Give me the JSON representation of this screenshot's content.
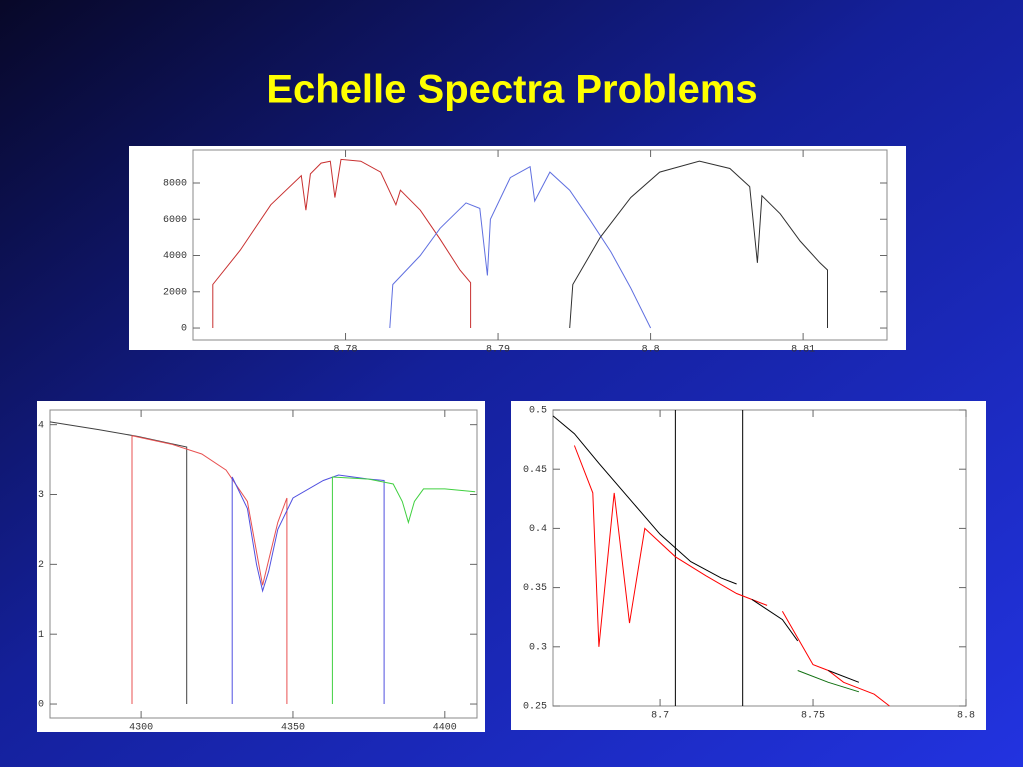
{
  "title": "Echelle Spectra Problems",
  "chart_data": [
    {
      "type": "line",
      "xlim": [
        8.77,
        8.8155
      ],
      "ylim": [
        -660,
        9820
      ],
      "xticks": [
        8.78,
        8.79,
        8.8,
        8.81
      ],
      "yticks": [
        0,
        2000,
        4000,
        6000,
        8000
      ],
      "series": [
        {
          "color": "#c83030",
          "x": [
            8.7713,
            8.7713,
            8.7731,
            8.7751,
            8.7771,
            8.7774,
            8.7777,
            8.7784,
            8.779,
            8.7793,
            8.7797,
            8.781,
            8.7823,
            8.7833,
            8.7836,
            8.7849,
            8.7862,
            8.7875,
            8.7882,
            8.7882
          ],
          "values": [
            0,
            2400,
            4300,
            6800,
            8400,
            6500,
            8500,
            9100,
            9200,
            7200,
            9300,
            9200,
            8600,
            6800,
            7600,
            6500,
            4900,
            3200,
            2500,
            0
          ]
        },
        {
          "color": "#6070e0",
          "x": [
            8.7829,
            8.7831,
            8.7849,
            8.7862,
            8.7879,
            8.7888,
            8.7893,
            8.7895,
            8.7908,
            8.7921,
            8.7924,
            8.7934,
            8.7947,
            8.796,
            8.7974,
            8.7987,
            8.8
          ],
          "values": [
            0,
            2400,
            4000,
            5500,
            6900,
            6600,
            2900,
            6000,
            8300,
            8900,
            7000,
            8600,
            7600,
            6000,
            4200,
            2200,
            0
          ]
        },
        {
          "color": "#303030",
          "x": [
            8.7947,
            8.7949,
            8.7967,
            8.7987,
            8.8006,
            8.8032,
            8.8052,
            8.8065,
            8.807,
            8.8073,
            8.8085,
            8.8098,
            8.8111,
            8.8116,
            8.8116
          ],
          "values": [
            0,
            2400,
            5000,
            7200,
            8600,
            9200,
            8800,
            7800,
            3600,
            7300,
            6300,
            4800,
            3600,
            3200,
            0
          ]
        }
      ]
    },
    {
      "type": "line",
      "xlim": [
        4270,
        4410.6
      ],
      "ylim": [
        -0.2,
        4.21
      ],
      "xticks": [
        4300,
        4350,
        4400
      ],
      "yticks": [
        0,
        1,
        2,
        3,
        4
      ],
      "series": [
        {
          "color": "#404040",
          "x": [
            4270,
            4286,
            4299,
            4315,
            4315
          ],
          "values": [
            4.04,
            3.93,
            3.83,
            3.68,
            0
          ]
        },
        {
          "color": "#e85050",
          "x": [
            4297,
            4297,
            4310,
            4320,
            4328,
            4335,
            4340,
            4345,
            4348,
            4348
          ],
          "values": [
            0,
            3.84,
            3.72,
            3.58,
            3.35,
            2.9,
            1.7,
            2.6,
            2.95,
            0
          ]
        },
        {
          "color": "#5050e0",
          "x": [
            4330,
            4330,
            4335,
            4338,
            4340,
            4342,
            4345,
            4350,
            4360,
            4365,
            4375,
            4380,
            4380
          ],
          "values": [
            0,
            3.25,
            2.8,
            2.0,
            1.62,
            1.9,
            2.5,
            2.95,
            3.2,
            3.28,
            3.22,
            3.2,
            0
          ]
        },
        {
          "color": "#40d040",
          "x": [
            4363,
            4363,
            4375,
            4383,
            4386,
            4388,
            4390,
            4393,
            4400,
            4410
          ],
          "values": [
            0,
            3.25,
            3.22,
            3.15,
            2.9,
            2.6,
            2.9,
            3.08,
            3.08,
            3.04
          ]
        }
      ]
    },
    {
      "type": "line",
      "xlim": [
        8.665,
        8.8
      ],
      "ylim": [
        0.25,
        0.5
      ],
      "xticks": [
        8.7,
        8.75,
        8.8
      ],
      "yticks": [
        0.25,
        0.3,
        0.35,
        0.4,
        0.45,
        0.5
      ],
      "vlines": [
        8.705,
        8.727
      ],
      "series": [
        {
          "color": "#ff0000",
          "x": [
            8.672,
            8.678,
            8.68,
            8.685,
            8.69,
            8.695,
            8.705,
            8.715,
            8.725,
            8.735,
            8.735,
            8.74,
            8.75,
            8.755,
            8.76,
            8.77,
            8.775
          ],
          "values": [
            0.47,
            0.43,
            0.3,
            0.43,
            0.32,
            0.4,
            0.376,
            0.36,
            0.345,
            0.335,
            null,
            0.33,
            0.285,
            0.28,
            0.27,
            0.26,
            0.25
          ]
        },
        {
          "color": "#000000",
          "x": [
            8.665,
            8.672,
            8.68,
            8.69,
            8.7,
            8.71,
            8.72,
            8.725,
            8.725,
            8.73,
            8.74,
            8.745,
            8.745,
            8.755,
            8.765
          ],
          "values": [
            0.495,
            0.48,
            0.455,
            0.425,
            0.395,
            0.372,
            0.358,
            0.353,
            null,
            0.34,
            0.323,
            0.305,
            null,
            0.28,
            0.27
          ]
        },
        {
          "color": "#107010",
          "x": [
            8.745,
            8.755,
            8.765
          ],
          "values": [
            0.28,
            0.27,
            0.262
          ]
        }
      ]
    }
  ]
}
